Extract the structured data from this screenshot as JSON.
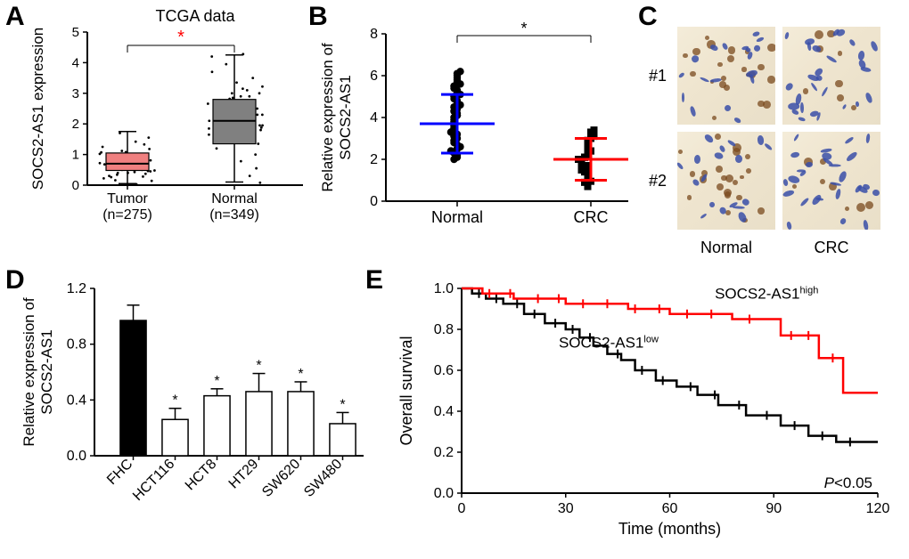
{
  "panelA": {
    "letter": "A",
    "title": "TCGA data",
    "title_fontsize": 18,
    "ylabel": "SOCS2-AS1 expression",
    "xlabels": [
      "Tumor\n(n=275)",
      "Normal\n(n=349)"
    ],
    "ylim": [
      0,
      5
    ],
    "yticks": [
      0,
      1,
      2,
      3,
      4,
      5
    ],
    "background_color": "#ffffff",
    "sig": "*",
    "sig_color": "#ff0000",
    "boxes": [
      {
        "name": "Tumor",
        "q1": 0.48,
        "median": 0.7,
        "q3": 1.05,
        "whisker_lo": 0.05,
        "whisker_hi": 1.75,
        "fill": "#f08080",
        "x": 0
      },
      {
        "name": "Normal",
        "q1": 1.35,
        "median": 2.1,
        "q3": 2.8,
        "whisker_lo": 0.1,
        "whisker_hi": 4.25,
        "fill": "#808080",
        "x": 1
      }
    ],
    "jitter": {
      "Tumor": [
        0.03,
        0.14,
        0.16,
        0.22,
        0.26,
        0.28,
        0.3,
        0.34,
        0.37,
        0.4,
        0.43,
        0.46,
        0.48,
        0.5,
        0.52,
        0.55,
        0.58,
        0.6,
        0.62,
        0.65,
        0.68,
        0.7,
        0.72,
        0.75,
        0.78,
        0.8,
        0.83,
        0.86,
        0.9,
        0.94,
        0.98,
        1.02,
        1.07,
        1.12,
        1.18,
        1.25,
        1.33,
        1.42,
        1.55,
        1.7,
        0.55,
        0.6,
        0.66,
        0.7,
        0.75,
        0.81,
        0.87,
        0.93,
        1.0,
        1.08,
        0.5,
        0.58,
        0.66,
        0.74,
        0.82,
        0.9,
        0.4,
        0.45,
        0.5,
        0.55
      ],
      "Normal": [
        0.08,
        0.3,
        0.55,
        0.78,
        1.0,
        1.2,
        1.35,
        1.48,
        1.6,
        1.72,
        1.8,
        1.88,
        1.95,
        2.02,
        2.1,
        2.18,
        2.26,
        2.34,
        2.42,
        2.5,
        2.58,
        2.66,
        2.74,
        2.82,
        2.9,
        3.0,
        3.1,
        3.22,
        3.35,
        3.5,
        3.7,
        3.95,
        4.2,
        4.28,
        1.5,
        1.65,
        1.8,
        1.95,
        2.1,
        2.25,
        2.4,
        2.55,
        2.7,
        2.85,
        3.0,
        3.15,
        1.9,
        2.0,
        2.1,
        2.2,
        2.3,
        1.7,
        1.85,
        2.0,
        2.15,
        2.3,
        2.45,
        2.6,
        2.75,
        2.9
      ]
    }
  },
  "panelB": {
    "letter": "B",
    "ylabel": "Relative expression of\nSOCS2-AS1",
    "ylim": [
      0,
      8
    ],
    "yticks": [
      0,
      2,
      4,
      6,
      8
    ],
    "sig": "*",
    "groups": [
      {
        "name": "Normal",
        "marker": "circle",
        "mean": 3.7,
        "sd": 1.4,
        "color": "#0000ff",
        "x": 0,
        "points": [
          2.0,
          2.1,
          2.2,
          2.3,
          2.4,
          2.4,
          2.5,
          2.5,
          2.6,
          2.7,
          2.8,
          2.9,
          2.9,
          3.0,
          3.1,
          3.1,
          3.2,
          3.3,
          3.3,
          3.4,
          3.4,
          3.5,
          3.5,
          3.6,
          3.6,
          3.7,
          3.7,
          3.8,
          3.8,
          3.9,
          3.9,
          4.0,
          4.0,
          4.1,
          4.1,
          4.2,
          4.3,
          4.3,
          4.4,
          4.5,
          4.5,
          4.6,
          4.7,
          4.8,
          4.9,
          5.0,
          5.0,
          5.1,
          5.2,
          5.3,
          5.4,
          5.5,
          5.6,
          5.8,
          6.0,
          6.1,
          6.2,
          5.9,
          5.7,
          5.5
        ]
      },
      {
        "name": "CRC",
        "marker": "square",
        "mean": 2.0,
        "sd": 1.0,
        "color": "#ff0000",
        "x": 1,
        "points": [
          0.7,
          0.8,
          0.9,
          0.95,
          1.0,
          1.0,
          1.1,
          1.1,
          1.2,
          1.2,
          1.3,
          1.3,
          1.4,
          1.4,
          1.5,
          1.5,
          1.6,
          1.6,
          1.7,
          1.7,
          1.8,
          1.8,
          1.9,
          1.9,
          2.0,
          2.0,
          2.0,
          2.1,
          2.1,
          2.2,
          2.2,
          2.3,
          2.3,
          2.4,
          2.4,
          2.5,
          2.5,
          2.6,
          2.6,
          2.7,
          2.7,
          2.8,
          2.8,
          2.9,
          2.9,
          3.0,
          3.0,
          3.1,
          3.2,
          3.3,
          3.4,
          2.0,
          2.1,
          2.2,
          2.3,
          1.5,
          1.6,
          1.8,
          1.9,
          2.1
        ]
      }
    ]
  },
  "panelC": {
    "letter": "C",
    "rows": [
      "#1",
      "#2"
    ],
    "cols": [
      "Normal",
      "CRC"
    ],
    "tile_size": 110,
    "gap": 8
  },
  "panelD": {
    "letter": "D",
    "ylabel": "Relative expression of\nSOCS2-AS1",
    "ylim": [
      0,
      1.2
    ],
    "yticks": [
      0.0,
      0.4,
      0.8,
      1.2
    ],
    "sig": "*",
    "bars": [
      {
        "name": "FHC",
        "mean": 0.97,
        "sd": 0.11,
        "fill": "#000000",
        "sig": false
      },
      {
        "name": "HCT116",
        "mean": 0.26,
        "sd": 0.08,
        "fill": "#ffffff",
        "sig": true
      },
      {
        "name": "HCT8",
        "mean": 0.43,
        "sd": 0.05,
        "fill": "#ffffff",
        "sig": true
      },
      {
        "name": "HT29",
        "mean": 0.46,
        "sd": 0.13,
        "fill": "#ffffff",
        "sig": true
      },
      {
        "name": "SW620",
        "mean": 0.46,
        "sd": 0.07,
        "fill": "#ffffff",
        "sig": true
      },
      {
        "name": "SW480",
        "mean": 0.23,
        "sd": 0.08,
        "fill": "#ffffff",
        "sig": true
      }
    ],
    "bar_width": 0.62
  },
  "panelE": {
    "letter": "E",
    "ylabel": "Overall survival",
    "xlabel": "Time (months)",
    "ylim": [
      0,
      1.0
    ],
    "yticks": [
      0,
      0.2,
      0.4,
      0.6,
      0.8,
      1.0
    ],
    "xlim": [
      0,
      120
    ],
    "xticks": [
      0,
      30,
      60,
      90,
      120
    ],
    "pvalue": "P<0.05",
    "high": {
      "label": "SOCS2-AS1",
      "sup": "high",
      "color": "#ff0000",
      "steps": [
        [
          0,
          1.0
        ],
        [
          6,
          1.0
        ],
        [
          6,
          0.975
        ],
        [
          15,
          0.975
        ],
        [
          15,
          0.95
        ],
        [
          30,
          0.95
        ],
        [
          30,
          0.925
        ],
        [
          48,
          0.925
        ],
        [
          48,
          0.9
        ],
        [
          60,
          0.9
        ],
        [
          60,
          0.875
        ],
        [
          78,
          0.875
        ],
        [
          78,
          0.85
        ],
        [
          92,
          0.85
        ],
        [
          92,
          0.77
        ],
        [
          103,
          0.77
        ],
        [
          103,
          0.66
        ],
        [
          110,
          0.66
        ],
        [
          110,
          0.49
        ],
        [
          120,
          0.49
        ]
      ],
      "censors": [
        8,
        14,
        22,
        28,
        35,
        42,
        50,
        57,
        65,
        72,
        83,
        95,
        100,
        107
      ]
    },
    "low": {
      "label": "SOCS2-AS1",
      "sup": "low",
      "color": "#000000",
      "steps": [
        [
          0,
          1.0
        ],
        [
          3,
          1.0
        ],
        [
          3,
          0.975
        ],
        [
          7,
          0.975
        ],
        [
          7,
          0.95
        ],
        [
          12,
          0.95
        ],
        [
          12,
          0.925
        ],
        [
          18,
          0.925
        ],
        [
          18,
          0.875
        ],
        [
          24,
          0.875
        ],
        [
          24,
          0.83
        ],
        [
          30,
          0.83
        ],
        [
          30,
          0.8
        ],
        [
          34,
          0.8
        ],
        [
          34,
          0.76
        ],
        [
          38,
          0.76
        ],
        [
          38,
          0.72
        ],
        [
          42,
          0.72
        ],
        [
          42,
          0.68
        ],
        [
          46,
          0.68
        ],
        [
          46,
          0.65
        ],
        [
          50,
          0.65
        ],
        [
          50,
          0.6
        ],
        [
          56,
          0.6
        ],
        [
          56,
          0.55
        ],
        [
          62,
          0.55
        ],
        [
          62,
          0.52
        ],
        [
          68,
          0.52
        ],
        [
          68,
          0.48
        ],
        [
          74,
          0.48
        ],
        [
          74,
          0.43
        ],
        [
          82,
          0.43
        ],
        [
          82,
          0.38
        ],
        [
          92,
          0.38
        ],
        [
          92,
          0.33
        ],
        [
          100,
          0.33
        ],
        [
          100,
          0.28
        ],
        [
          108,
          0.28
        ],
        [
          108,
          0.25
        ],
        [
          120,
          0.25
        ]
      ],
      "censors": [
        5,
        10,
        16,
        21,
        27,
        32,
        37,
        45,
        52,
        58,
        66,
        73,
        80,
        88,
        96,
        104,
        112
      ]
    }
  }
}
